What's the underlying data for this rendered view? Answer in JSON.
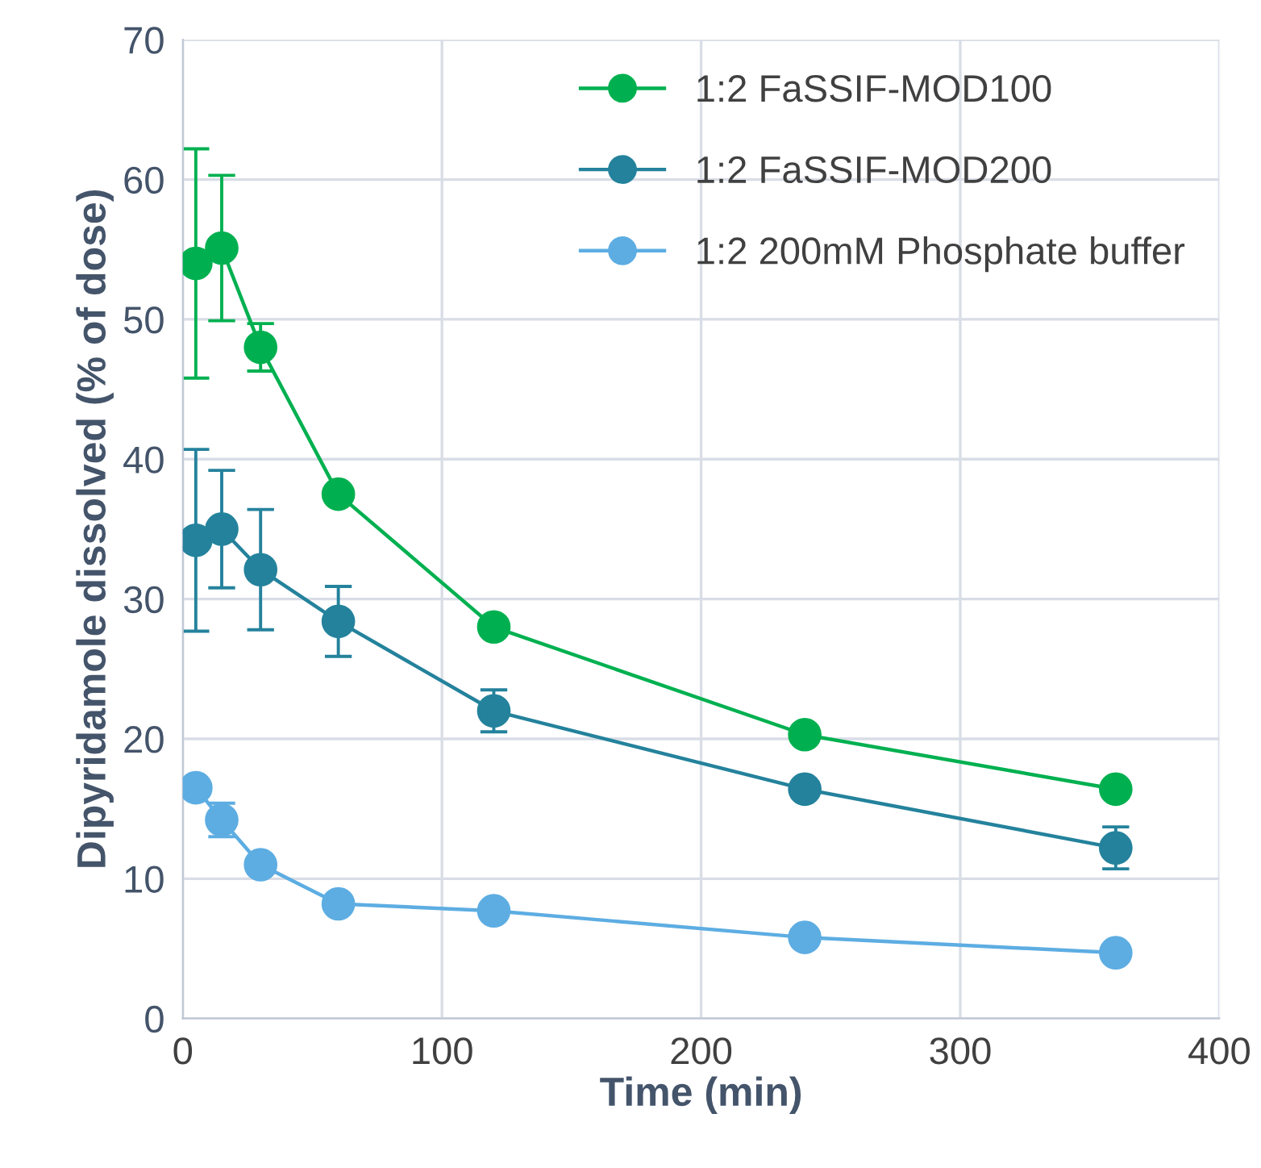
{
  "chart_data": {
    "type": "line",
    "xlabel": "Time (min)",
    "ylabel": "Dipyridamole dissolved (% of dose)",
    "x": [
      5,
      15,
      30,
      60,
      120,
      240,
      360
    ],
    "series": [
      {
        "name": "1:2 FaSSIF-MOD100",
        "color": "#00b050",
        "values": [
          54.0,
          55.1,
          48.0,
          37.5,
          28.0,
          20.3,
          16.4
        ],
        "errors": [
          8.2,
          5.2,
          1.7,
          null,
          null,
          null,
          null
        ]
      },
      {
        "name": "1:2 FaSSIF-MOD200",
        "color": "#24829c",
        "values": [
          34.2,
          35.0,
          32.1,
          28.4,
          22.0,
          16.4,
          12.2
        ],
        "errors": [
          6.5,
          4.2,
          4.3,
          2.5,
          1.5,
          null,
          1.5
        ]
      },
      {
        "name": "1:2 200mM Phosphate buffer",
        "color": "#5dade2",
        "values": [
          16.5,
          14.2,
          11.0,
          8.2,
          7.7,
          5.8,
          4.7
        ],
        "errors": [
          null,
          1.2,
          null,
          null,
          null,
          null,
          null
        ]
      }
    ],
    "xlim": [
      0,
      400
    ],
    "xticks": [
      0,
      100,
      200,
      300,
      400
    ],
    "ylim": [
      0,
      70
    ],
    "yticks": [
      0,
      10,
      20,
      30,
      40,
      50,
      60,
      70
    ],
    "grid": true,
    "legend": "top right",
    "marker": "circle",
    "line_style": "solid"
  }
}
